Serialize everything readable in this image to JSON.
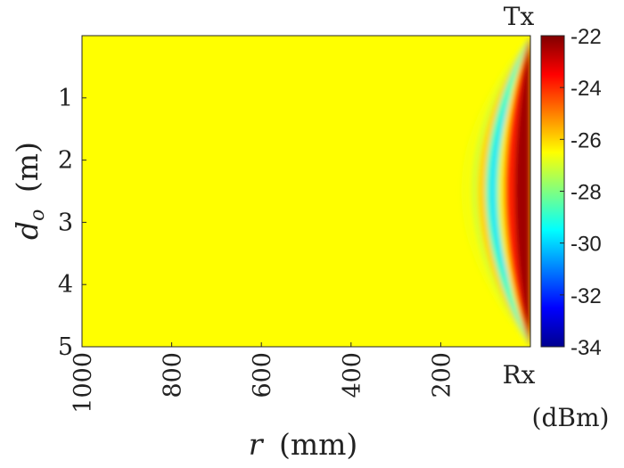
{
  "chart_data": {
    "type": "heatmap",
    "title": "",
    "xlabel": {
      "symbol": "r",
      "unit": "(mm)"
    },
    "ylabel": {
      "symbol": "d",
      "subscript": "o",
      "unit": "(m)"
    },
    "x_ticks": [
      "1000",
      "800",
      "600",
      "400",
      "200"
    ],
    "y_ticks": [
      "1",
      "2",
      "3",
      "4",
      "5"
    ],
    "xlim": [
      1000,
      0
    ],
    "ylim": [
      0,
      5
    ],
    "colorbar": {
      "ticks": [
        "-22",
        "-24",
        "-26",
        "-28",
        "-30",
        "-32",
        "-34"
      ],
      "range": [
        -34,
        -22
      ],
      "colormap": "jet",
      "unit": "(dBm)"
    },
    "annotations": {
      "top_right": "Tx",
      "bottom_right": "Rx"
    },
    "background_level_dBm": -26,
    "features": [
      {
        "description": "high-power crescent near r=0",
        "r_mm": [
          0,
          60
        ],
        "value_dBm": -22
      },
      {
        "description": "minimum ring",
        "r_mm": [
          100,
          130
        ],
        "value_dBm": -29.5
      }
    ],
    "colors": {
      "background_field": "#ffff00",
      "max": "#800000",
      "min": "#00008f"
    }
  }
}
